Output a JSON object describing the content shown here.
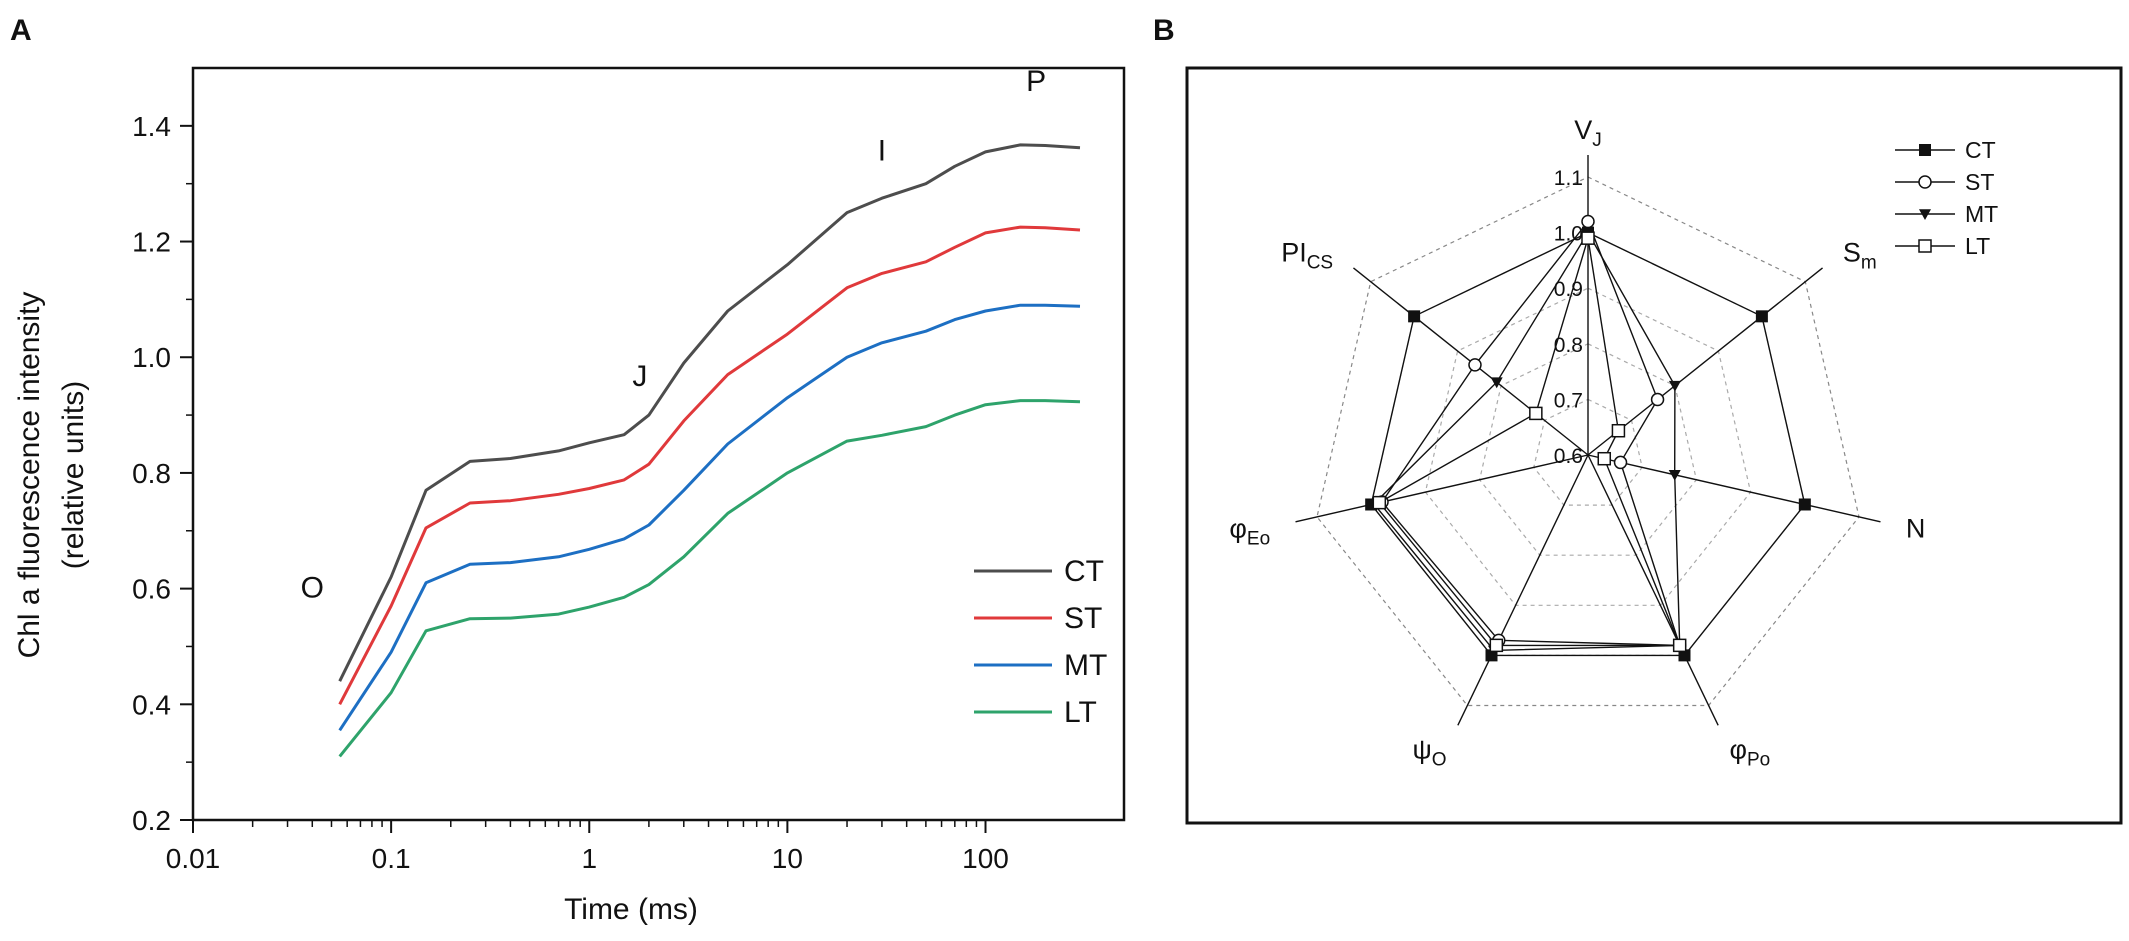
{
  "colors": {
    "CT": "#4d4d4d",
    "ST": "#e0393b",
    "MT": "#1d6fc3",
    "LT": "#2ea36b",
    "radar": "#111111"
  },
  "chart_data": [
    {
      "panel": "A",
      "type": "line",
      "xscale": "log",
      "xlabel": "Time (ms)",
      "ylabel": "Chl a fluorescence intensity",
      "ylabel2": "(relative units)",
      "xlim": [
        0.01,
        500
      ],
      "ylim": [
        0.2,
        1.5
      ],
      "xticks": [
        {
          "v": 0.01,
          "label": "0.01"
        },
        {
          "v": 0.1,
          "label": "0.1"
        },
        {
          "v": 1,
          "label": "1"
        },
        {
          "v": 10,
          "label": "10"
        },
        {
          "v": 100,
          "label": "100"
        }
      ],
      "yticks": [
        {
          "v": 0.2,
          "label": "0.2"
        },
        {
          "v": 0.4,
          "label": "0.4"
        },
        {
          "v": 0.6,
          "label": "0.6"
        },
        {
          "v": 0.8,
          "label": "0.8"
        },
        {
          "v": 1.0,
          "label": "1.0"
        },
        {
          "v": 1.2,
          "label": "1.2"
        },
        {
          "v": 1.4,
          "label": "1.4"
        }
      ],
      "annotations": [
        {
          "text": "O",
          "x": 0.04,
          "y": 0.585
        },
        {
          "text": "J",
          "x": 1.8,
          "y": 0.95
        },
        {
          "text": "I",
          "x": 30,
          "y": 1.34
        },
        {
          "text": "P",
          "x": 180,
          "y": 1.46
        }
      ],
      "series": [
        {
          "name": "CT",
          "points": [
            [
              0.055,
              0.44
            ],
            [
              0.1,
              0.62
            ],
            [
              0.15,
              0.77
            ],
            [
              0.25,
              0.82
            ],
            [
              0.4,
              0.825
            ],
            [
              0.7,
              0.838
            ],
            [
              1,
              0.852
            ],
            [
              1.5,
              0.866
            ],
            [
              2,
              0.9
            ],
            [
              3,
              0.99
            ],
            [
              5,
              1.08
            ],
            [
              10,
              1.16
            ],
            [
              20,
              1.25
            ],
            [
              30,
              1.275
            ],
            [
              50,
              1.3
            ],
            [
              70,
              1.33
            ],
            [
              100,
              1.355
            ],
            [
              150,
              1.367
            ],
            [
              200,
              1.366
            ],
            [
              300,
              1.362
            ]
          ]
        },
        {
          "name": "ST",
          "points": [
            [
              0.055,
              0.4
            ],
            [
              0.1,
              0.57
            ],
            [
              0.15,
              0.705
            ],
            [
              0.25,
              0.748
            ],
            [
              0.4,
              0.752
            ],
            [
              0.7,
              0.763
            ],
            [
              1,
              0.773
            ],
            [
              1.5,
              0.788
            ],
            [
              2,
              0.815
            ],
            [
              3,
              0.89
            ],
            [
              5,
              0.97
            ],
            [
              10,
              1.04
            ],
            [
              20,
              1.12
            ],
            [
              30,
              1.145
            ],
            [
              50,
              1.165
            ],
            [
              70,
              1.19
            ],
            [
              100,
              1.215
            ],
            [
              150,
              1.225
            ],
            [
              200,
              1.224
            ],
            [
              300,
              1.22
            ]
          ]
        },
        {
          "name": "MT",
          "points": [
            [
              0.055,
              0.355
            ],
            [
              0.1,
              0.49
            ],
            [
              0.15,
              0.61
            ],
            [
              0.25,
              0.642
            ],
            [
              0.4,
              0.645
            ],
            [
              0.7,
              0.655
            ],
            [
              1,
              0.668
            ],
            [
              1.5,
              0.686
            ],
            [
              2,
              0.71
            ],
            [
              3,
              0.77
            ],
            [
              5,
              0.85
            ],
            [
              10,
              0.93
            ],
            [
              20,
              1.0
            ],
            [
              30,
              1.025
            ],
            [
              50,
              1.045
            ],
            [
              70,
              1.065
            ],
            [
              100,
              1.08
            ],
            [
              150,
              1.09
            ],
            [
              200,
              1.09
            ],
            [
              300,
              1.088
            ]
          ]
        },
        {
          "name": "LT",
          "points": [
            [
              0.055,
              0.31
            ],
            [
              0.1,
              0.42
            ],
            [
              0.15,
              0.527
            ],
            [
              0.25,
              0.548
            ],
            [
              0.4,
              0.549
            ],
            [
              0.7,
              0.556
            ],
            [
              1,
              0.568
            ],
            [
              1.5,
              0.585
            ],
            [
              2,
              0.607
            ],
            [
              3,
              0.655
            ],
            [
              5,
              0.73
            ],
            [
              10,
              0.8
            ],
            [
              20,
              0.855
            ],
            [
              30,
              0.865
            ],
            [
              50,
              0.88
            ],
            [
              70,
              0.9
            ],
            [
              100,
              0.918
            ],
            [
              150,
              0.925
            ],
            [
              200,
              0.925
            ],
            [
              300,
              0.923
            ]
          ]
        }
      ],
      "legend": [
        "CT",
        "ST",
        "MT",
        "LT"
      ]
    },
    {
      "panel": "B",
      "type": "radar",
      "rlim": [
        0.6,
        1.1
      ],
      "rticks": [
        {
          "v": 0.6,
          "label": "0.6"
        },
        {
          "v": 0.7,
          "label": "0.7"
        },
        {
          "v": 0.8,
          "label": "0.8"
        },
        {
          "v": 0.9,
          "label": "0.9"
        },
        {
          "v": 1.0,
          "label": "1.0"
        },
        {
          "v": 1.1,
          "label": "1.1"
        }
      ],
      "axes": [
        {
          "main": "V",
          "sub": "J"
        },
        {
          "main": "S",
          "sub": "m"
        },
        {
          "main": "N",
          "sub": ""
        },
        {
          "main": "φ",
          "sub": "Po"
        },
        {
          "main": "ψ",
          "sub": "O"
        },
        {
          "main": "φ",
          "sub": "Eo"
        },
        {
          "main": "PI",
          "sub": "CS"
        }
      ],
      "series": [
        {
          "name": "CT",
          "marker": "square-filled",
          "values": [
            1.0,
            1.0,
            1.0,
            1.0,
            1.0,
            1.0,
            1.0
          ]
        },
        {
          "name": "ST",
          "marker": "circle-open",
          "values": [
            1.02,
            0.76,
            0.66,
            0.98,
            0.97,
            0.98,
            0.86
          ]
        },
        {
          "name": "MT",
          "marker": "triangle-filled",
          "values": [
            1.0,
            0.8,
            0.76,
            0.98,
            0.99,
            0.995,
            0.81
          ]
        },
        {
          "name": "LT",
          "marker": "square-open",
          "values": [
            0.99,
            0.67,
            0.63,
            0.98,
            0.98,
            0.985,
            0.72
          ]
        }
      ],
      "legend": [
        "CT",
        "ST",
        "MT",
        "LT"
      ]
    }
  ]
}
